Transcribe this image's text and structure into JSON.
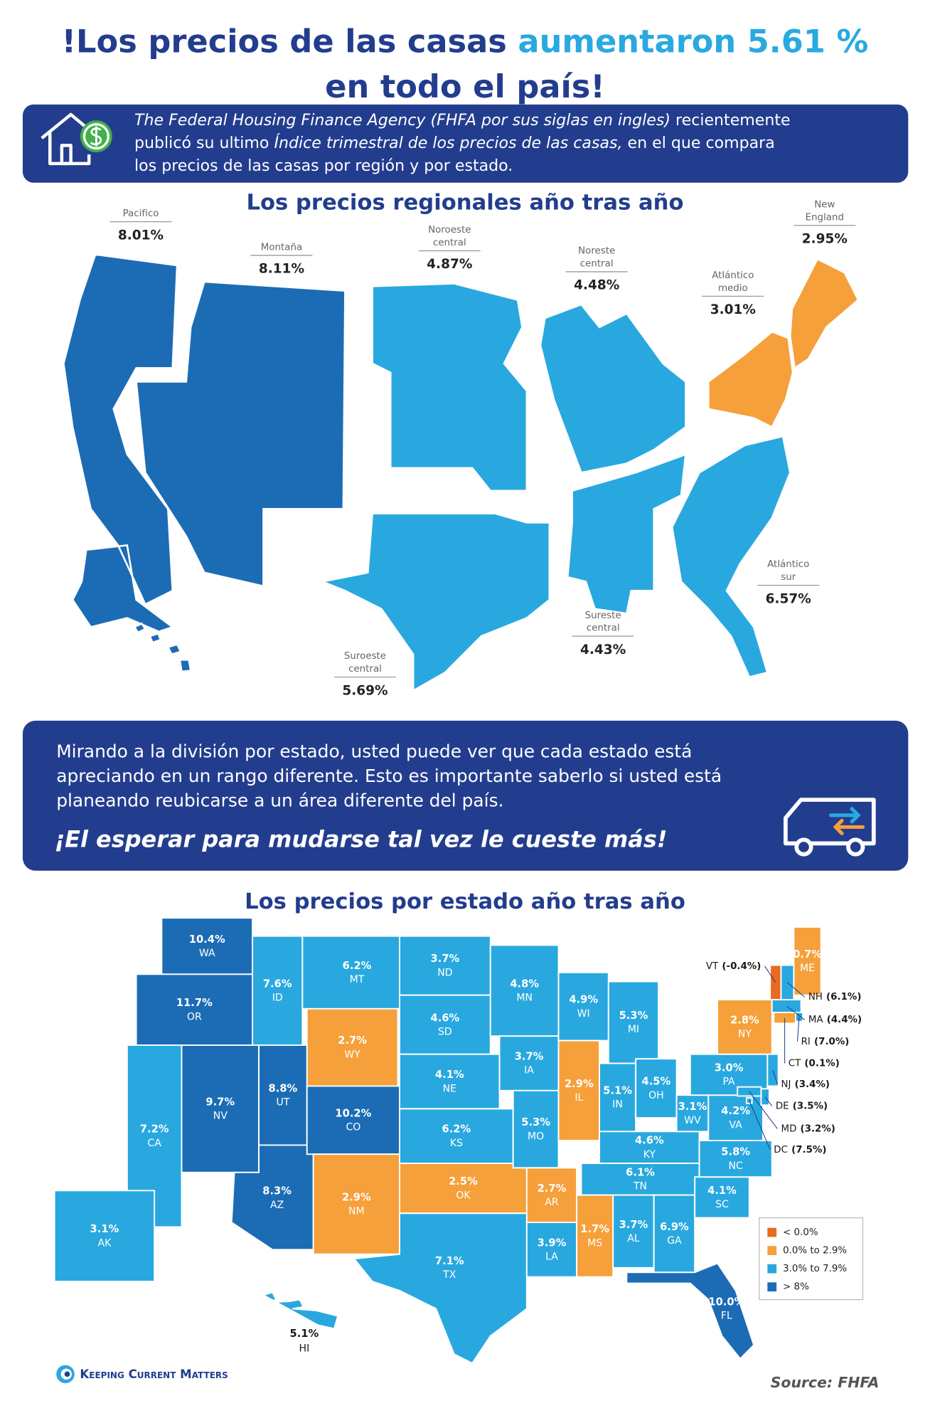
{
  "title": {
    "lines": [
      [
        {
          "text": "!Los precios de las casas ",
          "color": "#233d8e"
        },
        {
          "text": "aumentaron 5.61 %",
          "color": "#29a9e0"
        }
      ],
      [
        {
          "text": "en todo el país!",
          "color": "#233d8e"
        }
      ]
    ]
  },
  "intro": {
    "lines": [
      [
        {
          "text": "The Federal Housing Finance Agency (FHFA por sus siglas en ingles)",
          "italic": true
        },
        {
          "text": " recientemente"
        }
      ],
      [
        {
          "text": "publicó su ultimo "
        },
        {
          "text": "Índice trimestral de los precios de las casas,",
          "italic": true
        },
        {
          "text": " en el que compara"
        }
      ],
      [
        {
          "text": "los precios de las casas por región y por estado."
        }
      ]
    ]
  },
  "regional_map": {
    "title": "Los precios regionales año tras año",
    "regions": [
      {
        "name": [
          "Pacifico"
        ],
        "value": "8.01%",
        "color": "#1c6cb5"
      },
      {
        "name": [
          "Montaña"
        ],
        "value": "8.11%",
        "color": "#1c6cb5"
      },
      {
        "name": [
          "Noroeste",
          "central"
        ],
        "value": "4.87%",
        "color": "#29a8e0"
      },
      {
        "name": [
          "Noreste",
          "central"
        ],
        "value": "4.48%",
        "color": "#29a8e0"
      },
      {
        "name": [
          "New",
          "England"
        ],
        "value": "2.95%",
        "color": "#f5a03a"
      },
      {
        "name": [
          "Atlántico",
          "medio"
        ],
        "value": "3.01%",
        "color": "#f5a03a"
      },
      {
        "name": [
          "Atlántico",
          "sur"
        ],
        "value": "6.57%",
        "color": "#29a8e0"
      },
      {
        "name": [
          "Sureste",
          "central"
        ],
        "value": "4.43%",
        "color": "#29a8e0"
      },
      {
        "name": [
          "Suroeste",
          "central"
        ],
        "value": "5.69%",
        "color": "#29a8e0"
      }
    ]
  },
  "note": {
    "lines": [
      "Mirando a la división por estado, usted puede ver que cada estado está",
      "apreciando en un rango diferente. Esto es importante saberlo si usted está",
      "planeando reubicarse a un área diferente del país."
    ],
    "emphasis": "¡El esperar para mudarse tal vez le cueste más!"
  },
  "state_map": {
    "title": "Los precios por estado año tras año",
    "states": [
      {
        "abbr": "WA",
        "label": "10.4%",
        "color": "#1c6cb5"
      },
      {
        "abbr": "OR",
        "label": "11.7%",
        "color": "#1c6cb5"
      },
      {
        "abbr": "CA",
        "label": "7.2%",
        "color": "#29a8e0"
      },
      {
        "abbr": "ID",
        "label": "7.6%",
        "color": "#29a8e0"
      },
      {
        "abbr": "NV",
        "label": "9.7%",
        "color": "#1c6cb5"
      },
      {
        "abbr": "MT",
        "label": "6.2%",
        "color": "#29a8e0"
      },
      {
        "abbr": "WY",
        "label": "2.7%",
        "color": "#f5a03a"
      },
      {
        "abbr": "UT",
        "label": "8.8%",
        "color": "#1c6cb5"
      },
      {
        "abbr": "AZ",
        "label": "8.3%",
        "color": "#1c6cb5"
      },
      {
        "abbr": "CO",
        "label": "10.2%",
        "color": "#1c6cb5"
      },
      {
        "abbr": "NM",
        "label": "2.9%",
        "color": "#f5a03a"
      },
      {
        "abbr": "ND",
        "label": "3.7%",
        "color": "#29a8e0"
      },
      {
        "abbr": "SD",
        "label": "4.6%",
        "color": "#29a8e0"
      },
      {
        "abbr": "NE",
        "label": "4.1%",
        "color": "#29a8e0"
      },
      {
        "abbr": "KS",
        "label": "6.2%",
        "color": "#29a8e0"
      },
      {
        "abbr": "OK",
        "label": "2.5%",
        "color": "#f5a03a"
      },
      {
        "abbr": "TX",
        "label": "7.1%",
        "color": "#29a8e0"
      },
      {
        "abbr": "MN",
        "label": "4.8%",
        "color": "#29a8e0"
      },
      {
        "abbr": "IA",
        "label": "3.7%",
        "color": "#29a8e0"
      },
      {
        "abbr": "MO",
        "label": "5.3%",
        "color": "#29a8e0"
      },
      {
        "abbr": "AR",
        "label": "2.7%",
        "color": "#f5a03a"
      },
      {
        "abbr": "LA",
        "label": "3.9%",
        "color": "#29a8e0"
      },
      {
        "abbr": "WI",
        "label": "4.9%",
        "color": "#29a8e0"
      },
      {
        "abbr": "IL",
        "label": "2.9%",
        "color": "#f5a03a"
      },
      {
        "abbr": "MI",
        "label": "5.3%",
        "color": "#29a8e0"
      },
      {
        "abbr": "IN",
        "label": "5.1%",
        "color": "#29a8e0"
      },
      {
        "abbr": "OH",
        "label": "4.5%",
        "color": "#29a8e0"
      },
      {
        "abbr": "KY",
        "label": "4.6%",
        "color": "#29a8e0"
      },
      {
        "abbr": "TN",
        "label": "6.1%",
        "color": "#29a8e0"
      },
      {
        "abbr": "MS",
        "label": "1.7%",
        "color": "#f5a03a"
      },
      {
        "abbr": "AL",
        "label": "3.7%",
        "color": "#29a8e0"
      },
      {
        "abbr": "GA",
        "label": "6.9%",
        "color": "#29a8e0"
      },
      {
        "abbr": "FL",
        "label": "10.0%",
        "color": "#1c6cb5"
      },
      {
        "abbr": "SC",
        "label": "4.1%",
        "color": "#29a8e0"
      },
      {
        "abbr": "NC",
        "label": "5.8%",
        "color": "#29a8e0"
      },
      {
        "abbr": "WV",
        "label": "3.1%",
        "color": "#29a8e0"
      },
      {
        "abbr": "VA",
        "label": "4.2%",
        "color": "#29a8e0"
      },
      {
        "abbr": "PA",
        "label": "3.0%",
        "color": "#29a8e0"
      },
      {
        "abbr": "NY",
        "label": "2.8%",
        "color": "#f5a03a"
      },
      {
        "abbr": "ME",
        "label": "0.7%",
        "color": "#f5a03a"
      },
      {
        "abbr": "VT",
        "label": "(-0.4%)",
        "color": "#e86b1f"
      },
      {
        "abbr": "NH",
        "label": "(6.1%)",
        "color": "#29a8e0"
      },
      {
        "abbr": "MA",
        "label": "(4.4%)",
        "color": "#29a8e0"
      },
      {
        "abbr": "RI",
        "label": "(7.0%)",
        "color": "#29a8e0"
      },
      {
        "abbr": "CT",
        "label": "(0.1%)",
        "color": "#f5a03a"
      },
      {
        "abbr": "NJ",
        "label": "(3.4%)",
        "color": "#29a8e0"
      },
      {
        "abbr": "DE",
        "label": "(3.5%)",
        "color": "#29a8e0"
      },
      {
        "abbr": "MD",
        "label": "(3.2%)",
        "color": "#29a8e0"
      },
      {
        "abbr": "DC",
        "label": "(7.5%)",
        "color": "#29a8e0"
      },
      {
        "abbr": "AK",
        "label": "3.1%",
        "color": "#29a8e0"
      },
      {
        "abbr": "HI",
        "label": "5.1%",
        "color": "#29a8e0"
      }
    ],
    "legend": [
      {
        "label": "< 0.0%",
        "color": "#e86b1f"
      },
      {
        "label": "0.0% to 2.9%",
        "color": "#f5a03a"
      },
      {
        "label": "3.0% to 7.9%",
        "color": "#29a8e0"
      },
      {
        "label": "> 8%",
        "color": "#1c6cb5"
      }
    ]
  },
  "footer": {
    "brand": "Keeping Current Matters",
    "source": "Source: FHFA"
  }
}
